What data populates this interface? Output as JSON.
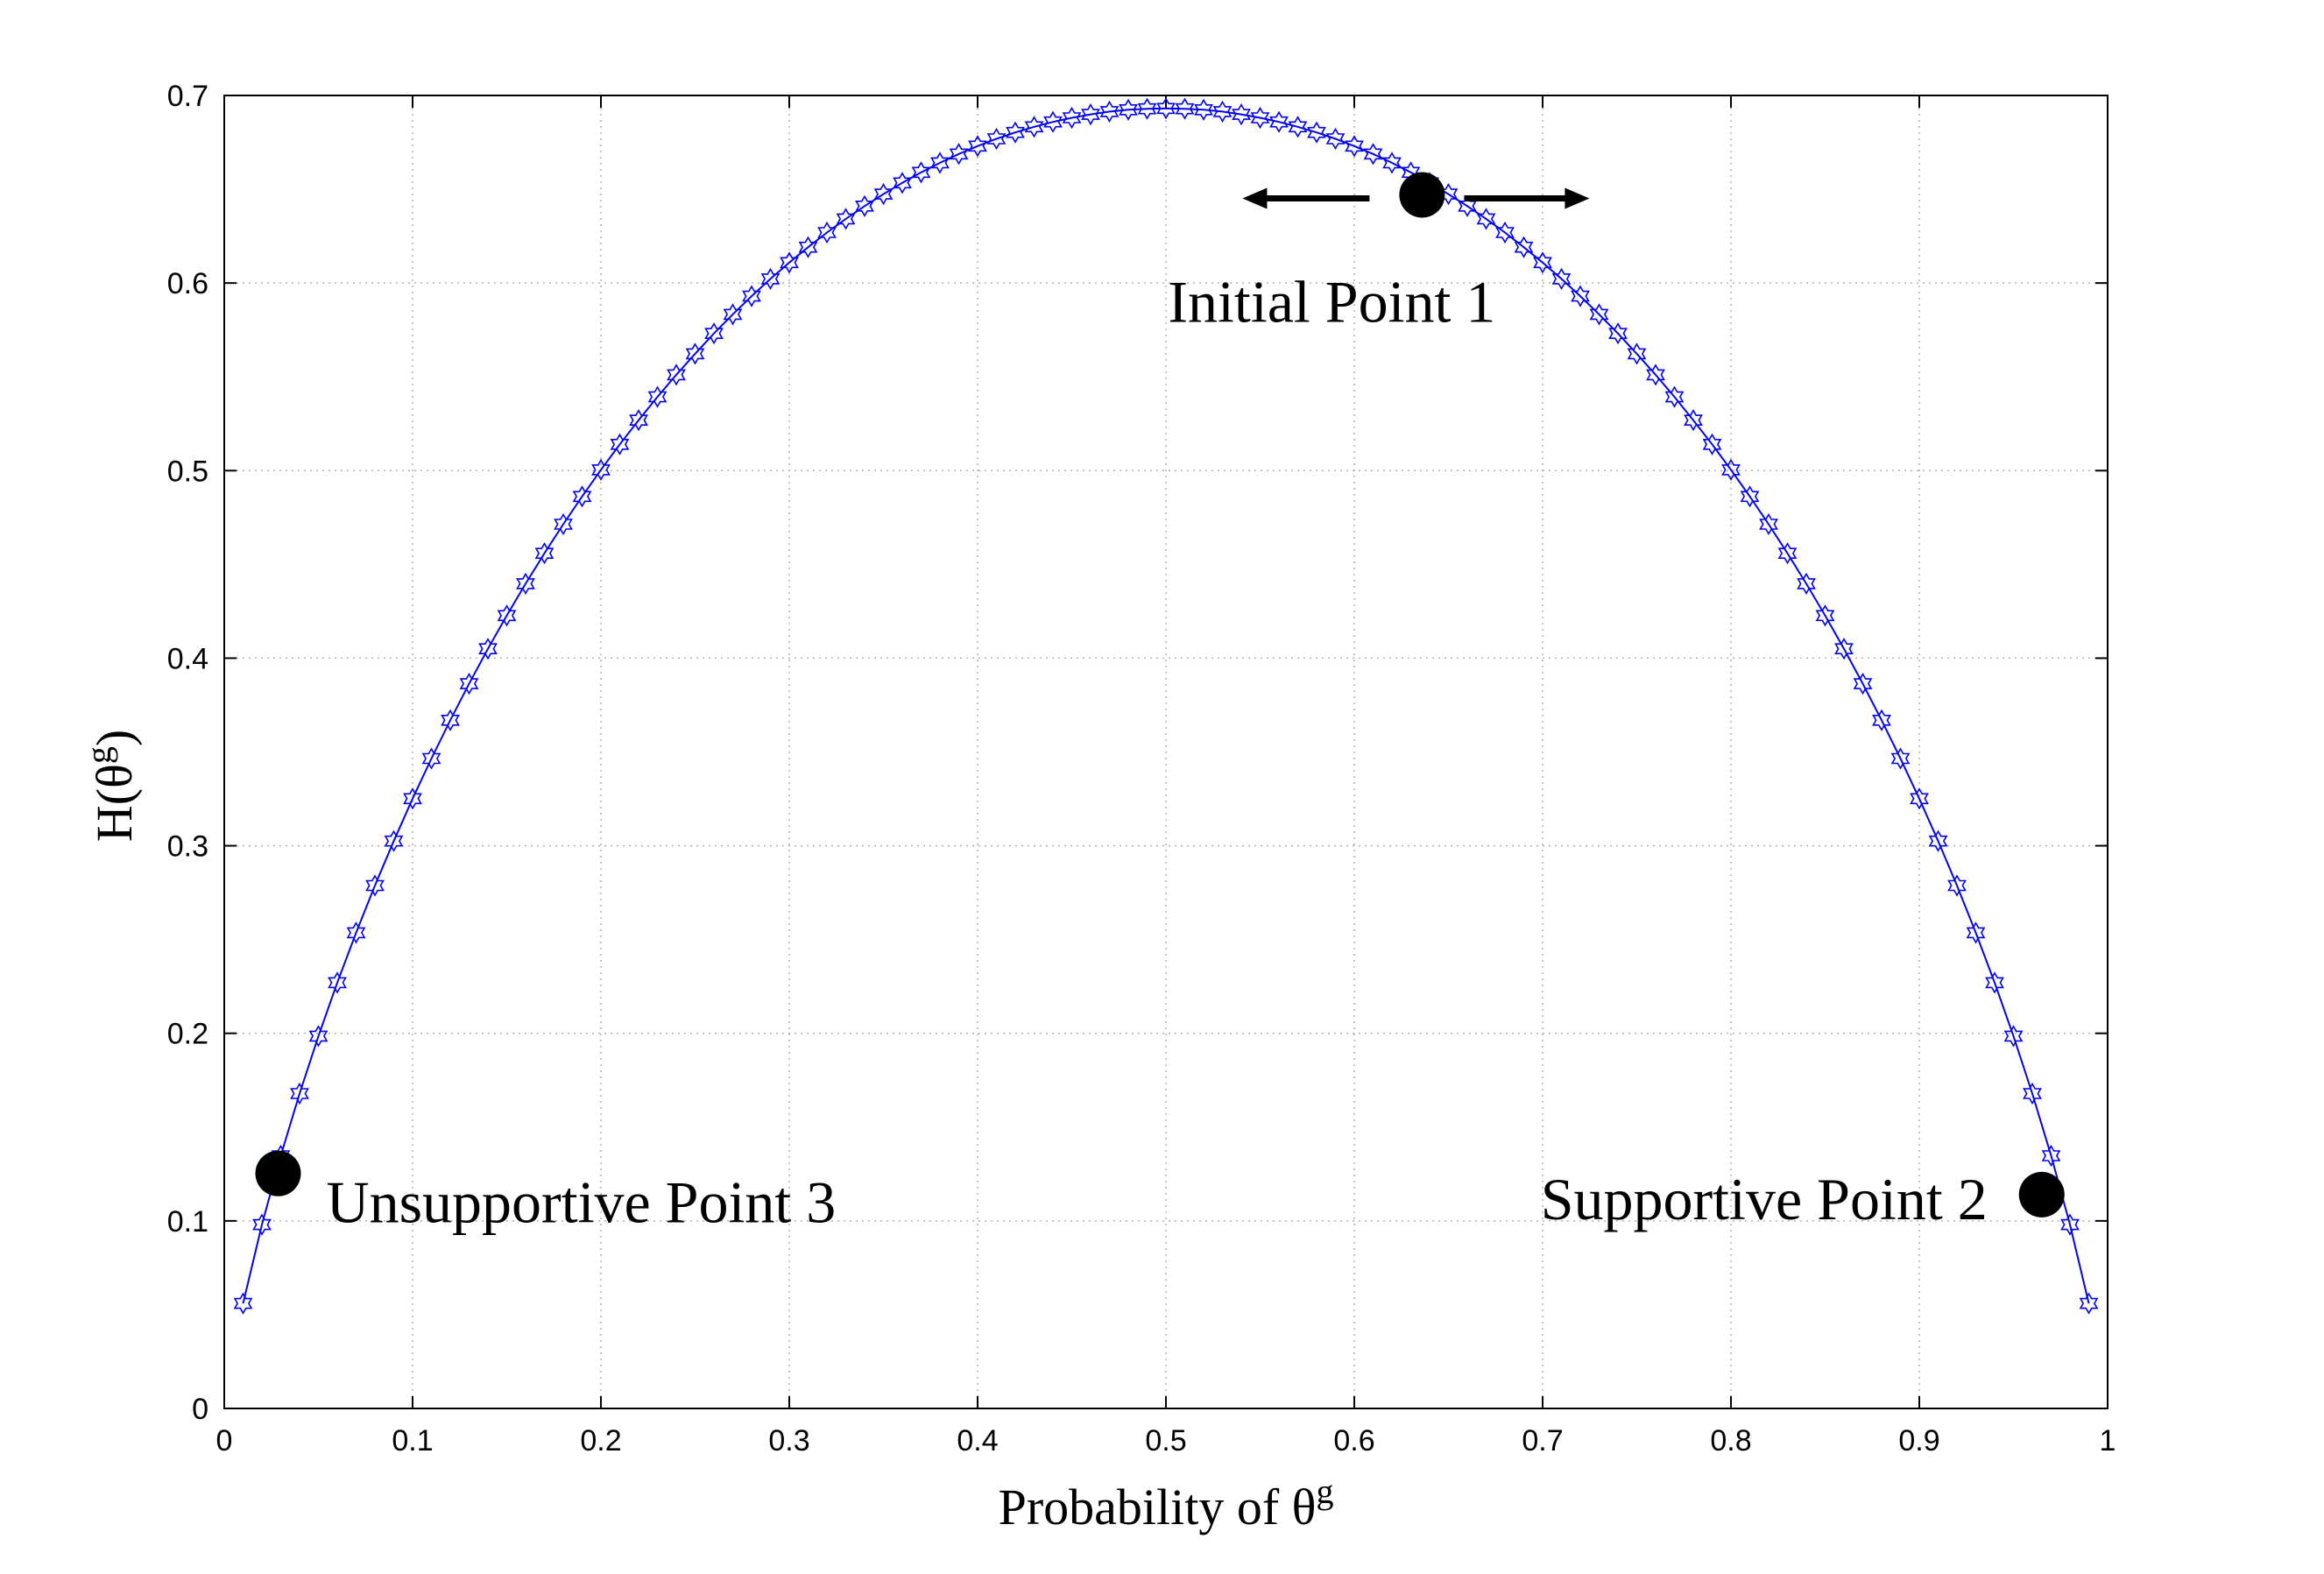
{
  "chart_data": {
    "type": "line",
    "xlabel": {
      "text": "Probability of θ",
      "sup": "g"
    },
    "ylabel": {
      "text": "H(θ",
      "sup": "g",
      "tail": ")"
    },
    "x": [
      0.01,
      0.02,
      0.03,
      0.04,
      0.05,
      0.06,
      0.07,
      0.08,
      0.09,
      0.1,
      0.11,
      0.12,
      0.13,
      0.14,
      0.15,
      0.16,
      0.17,
      0.18,
      0.19,
      0.2,
      0.21,
      0.22,
      0.23,
      0.24,
      0.25,
      0.26,
      0.27,
      0.28,
      0.29,
      0.3,
      0.31,
      0.32,
      0.33,
      0.34,
      0.35,
      0.36,
      0.37,
      0.38,
      0.39,
      0.4,
      0.41,
      0.42,
      0.43,
      0.44,
      0.45,
      0.46,
      0.47,
      0.48,
      0.49,
      0.5,
      0.51,
      0.52,
      0.53,
      0.54,
      0.55,
      0.56,
      0.57,
      0.58,
      0.59,
      0.6,
      0.61,
      0.62,
      0.63,
      0.64,
      0.65,
      0.66,
      0.67,
      0.68,
      0.69,
      0.7,
      0.71,
      0.72,
      0.73,
      0.74,
      0.75,
      0.76,
      0.77,
      0.78,
      0.79,
      0.8,
      0.81,
      0.82,
      0.83,
      0.84,
      0.85,
      0.86,
      0.87,
      0.88,
      0.89,
      0.9,
      0.91,
      0.92,
      0.93,
      0.94,
      0.95,
      0.96,
      0.97,
      0.98,
      0.99
    ],
    "series": [
      {
        "name": "H",
        "color": "#0000ff",
        "values": [
          0.056,
          0.098,
          0.1347,
          0.1679,
          0.1985,
          0.227,
          0.2536,
          0.2788,
          0.3025,
          0.3251,
          0.3465,
          0.3669,
          0.3864,
          0.405,
          0.4227,
          0.4397,
          0.4559,
          0.4714,
          0.4862,
          0.5004,
          0.514,
          0.5269,
          0.5393,
          0.5511,
          0.5623,
          0.5731,
          0.5833,
          0.593,
          0.6022,
          0.6109,
          0.6191,
          0.6269,
          0.6342,
          0.641,
          0.6474,
          0.6534,
          0.659,
          0.6641,
          0.6688,
          0.673,
          0.6769,
          0.6803,
          0.6833,
          0.6859,
          0.6881,
          0.6899,
          0.6914,
          0.6924,
          0.6929,
          0.6931,
          0.6929,
          0.6924,
          0.6914,
          0.6899,
          0.6881,
          0.6859,
          0.6833,
          0.6803,
          0.6769,
          0.673,
          0.6688,
          0.6641,
          0.659,
          0.6534,
          0.6474,
          0.641,
          0.6342,
          0.6269,
          0.6191,
          0.6109,
          0.6022,
          0.593,
          0.5833,
          0.5731,
          0.5623,
          0.5511,
          0.5393,
          0.5269,
          0.514,
          0.5004,
          0.4862,
          0.4714,
          0.4559,
          0.4397,
          0.4227,
          0.405,
          0.3864,
          0.3669,
          0.3465,
          0.3251,
          0.3025,
          0.2788,
          0.2536,
          0.227,
          0.1985,
          0.1679,
          0.1347,
          0.098,
          0.056
        ]
      }
    ],
    "annotations": [
      {
        "label": "Unsupportive Point 3",
        "x": 0.0286,
        "y": 0.1253
      },
      {
        "label": "Supportive Point 2",
        "x": 0.965,
        "y": 0.114
      },
      {
        "label": "Initial Point 1",
        "x": 0.636,
        "y": 0.647
      }
    ],
    "marker_color": "#000000",
    "xlim": [
      0,
      1
    ],
    "xticks": [
      0,
      0.1,
      0.2,
      0.3,
      0.4,
      0.5,
      0.6,
      0.7,
      0.8,
      0.9,
      1
    ],
    "ylim": [
      0,
      0.7
    ],
    "yticks": [
      0,
      0.1,
      0.2,
      0.3,
      0.4,
      0.5,
      0.6,
      0.7
    ],
    "grid": true
  }
}
